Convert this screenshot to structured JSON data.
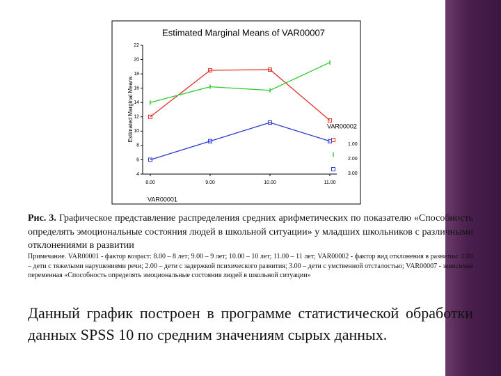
{
  "chart_data": {
    "type": "line",
    "title": "Estimated Marginal Means of VAR00007",
    "x_label": "VAR00001",
    "y_label": "Estimated Marginal Means",
    "legend_title": "VAR00002",
    "x": [
      8,
      9,
      10,
      11
    ],
    "xlim": [
      8,
      11
    ],
    "xticks": [
      {
        "value": 8,
        "label": "8.00"
      },
      {
        "value": 9,
        "label": "9.00"
      },
      {
        "value": 10,
        "label": "10.00"
      },
      {
        "value": 11,
        "label": "11.00"
      }
    ],
    "ylim": [
      4,
      22
    ],
    "yticks": [
      4,
      6,
      8,
      10,
      12,
      14,
      16,
      18,
      20,
      22
    ],
    "series": [
      {
        "name": "1.00",
        "color": "#e0302a",
        "marker": "square",
        "values": [
          12,
          18.5,
          18.6,
          11.5
        ]
      },
      {
        "name": "2.00",
        "color": "#2ccc2c",
        "marker": "tick",
        "values": [
          14,
          16.2,
          15.7,
          19.6
        ]
      },
      {
        "name": "3.00",
        "color": "#2a3ad0",
        "marker": "square",
        "values": [
          6,
          8.6,
          11.2,
          8.6
        ]
      }
    ]
  },
  "caption": {
    "label": "Рис. 3.",
    "text": "Графическое представление распределения средних арифметических по показателю «Способность определять эмоциональные состояния людей в школьной ситуации» у младших школьников с различными отклонениями в развитии"
  },
  "note": "Примечание. VAR00001 - фактор возраст: 8.00 – 8 лет; 9.00 – 9 лет; 10.00 – 10 лет; 11.00 – 11 лет; VAR00002 - фактор вид отклонения в развитии: 1.00 – дети с тяжелыми нарушениями речи; 2.00 – дети с задержкой психического развития; 3.00 – дети с умственной отсталостью; VAR00007 - зависимая переменная «Способность определять эмоциональные состояния людей в школьной ситуации»",
  "body": "Данный график построен в программе статистической обработки данных SPSS 10 по средним значениям сырых данных."
}
